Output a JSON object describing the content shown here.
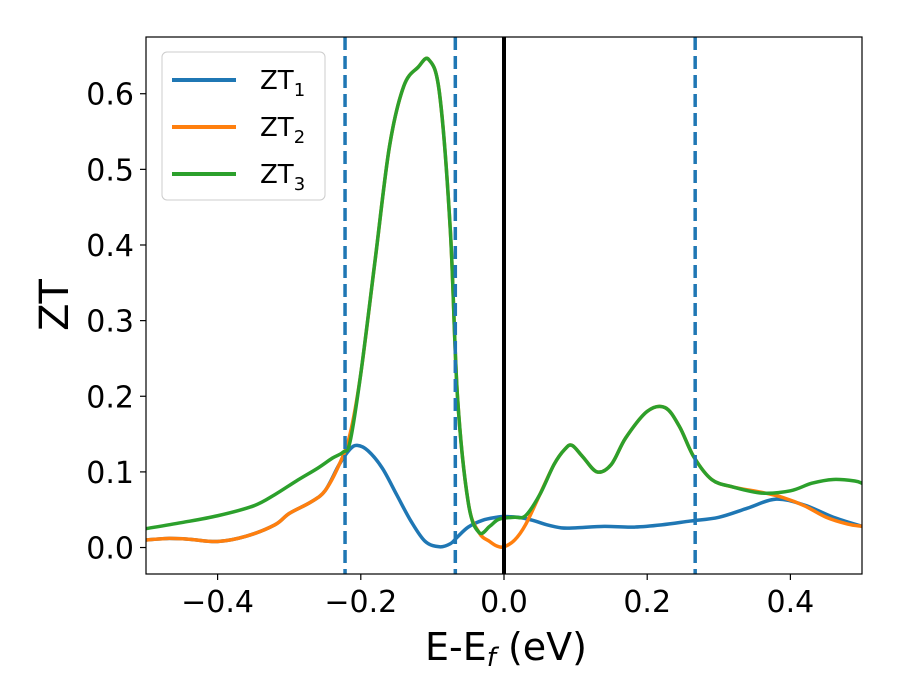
{
  "chart_data": {
    "type": "line",
    "xlabel": {
      "main": "E-E",
      "sub": "f",
      "unit": " (eV)"
    },
    "ylabel": "ZT",
    "xlim": [
      -0.5,
      0.5
    ],
    "ylim": [
      -0.035,
      0.675
    ],
    "xticks": [
      -0.4,
      -0.2,
      0.0,
      0.2,
      0.4
    ],
    "xtick_labels": [
      "−0.4",
      "−0.2",
      "0.0",
      "0.2",
      "0.4"
    ],
    "yticks": [
      0.0,
      0.1,
      0.2,
      0.3,
      0.4,
      0.5,
      0.6
    ],
    "ytick_labels": [
      "0.0",
      "0.1",
      "0.2",
      "0.3",
      "0.4",
      "0.5",
      "0.6"
    ],
    "legend_position": "top-left",
    "grid": false,
    "series": [
      {
        "name": "ZT",
        "sub": "1",
        "color": "#1f77b4",
        "x": [
          -0.5,
          -0.47,
          -0.44,
          -0.4,
          -0.36,
          -0.32,
          -0.3,
          -0.27,
          -0.25,
          -0.23,
          -0.215,
          -0.205,
          -0.19,
          -0.17,
          -0.15,
          -0.13,
          -0.11,
          -0.09,
          -0.075,
          -0.065,
          -0.05,
          -0.03,
          -0.01,
          0.0,
          0.02,
          0.04,
          0.06,
          0.08,
          0.1,
          0.14,
          0.18,
          0.22,
          0.26,
          0.3,
          0.34,
          0.38,
          0.42,
          0.46,
          0.5
        ],
        "y": [
          0.01,
          0.012,
          0.011,
          0.008,
          0.015,
          0.03,
          0.045,
          0.06,
          0.075,
          0.11,
          0.13,
          0.135,
          0.128,
          0.105,
          0.07,
          0.035,
          0.008,
          0.001,
          0.005,
          0.014,
          0.027,
          0.036,
          0.04,
          0.041,
          0.04,
          0.036,
          0.03,
          0.026,
          0.026,
          0.028,
          0.027,
          0.03,
          0.035,
          0.04,
          0.052,
          0.064,
          0.056,
          0.04,
          0.028
        ]
      },
      {
        "name": "ZT",
        "sub": "2",
        "color": "#ff7f0e",
        "x": [
          -0.5,
          -0.47,
          -0.44,
          -0.4,
          -0.36,
          -0.32,
          -0.3,
          -0.27,
          -0.25,
          -0.23,
          -0.215,
          -0.2,
          -0.18,
          -0.16,
          -0.14,
          -0.12,
          -0.105,
          -0.09,
          -0.075,
          -0.065,
          -0.05,
          -0.035,
          -0.02,
          -0.01,
          0.0,
          0.015,
          0.03,
          0.05,
          0.07,
          0.085,
          0.095,
          0.11,
          0.13,
          0.15,
          0.17,
          0.2,
          0.225,
          0.245,
          0.265,
          0.29,
          0.32,
          0.36,
          0.39,
          0.42,
          0.45,
          0.48,
          0.5
        ],
        "y": [
          0.01,
          0.012,
          0.011,
          0.008,
          0.015,
          0.03,
          0.045,
          0.06,
          0.075,
          0.11,
          0.15,
          0.23,
          0.38,
          0.53,
          0.61,
          0.635,
          0.645,
          0.6,
          0.42,
          0.2,
          0.06,
          0.02,
          0.008,
          0.002,
          0.001,
          0.01,
          0.03,
          0.07,
          0.11,
          0.13,
          0.135,
          0.12,
          0.1,
          0.11,
          0.145,
          0.18,
          0.185,
          0.16,
          0.12,
          0.09,
          0.08,
          0.073,
          0.066,
          0.055,
          0.04,
          0.031,
          0.028
        ]
      },
      {
        "name": "ZT",
        "sub": "3",
        "color": "#2ca02c",
        "x": [
          -0.5,
          -0.45,
          -0.4,
          -0.35,
          -0.32,
          -0.29,
          -0.26,
          -0.24,
          -0.225,
          -0.215,
          -0.2,
          -0.18,
          -0.16,
          -0.14,
          -0.12,
          -0.105,
          -0.09,
          -0.075,
          -0.065,
          -0.05,
          -0.035,
          -0.02,
          -0.01,
          0.0,
          0.015,
          0.03,
          0.05,
          0.07,
          0.085,
          0.095,
          0.11,
          0.13,
          0.15,
          0.17,
          0.2,
          0.225,
          0.245,
          0.265,
          0.29,
          0.32,
          0.36,
          0.4,
          0.43,
          0.46,
          0.49,
          0.5
        ],
        "y": [
          0.025,
          0.033,
          0.042,
          0.055,
          0.07,
          0.088,
          0.105,
          0.118,
          0.126,
          0.14,
          0.23,
          0.38,
          0.53,
          0.61,
          0.635,
          0.645,
          0.6,
          0.42,
          0.2,
          0.06,
          0.02,
          0.028,
          0.036,
          0.039,
          0.04,
          0.042,
          0.07,
          0.11,
          0.13,
          0.135,
          0.12,
          0.1,
          0.11,
          0.145,
          0.18,
          0.185,
          0.16,
          0.12,
          0.09,
          0.08,
          0.072,
          0.075,
          0.085,
          0.09,
          0.088,
          0.085
        ]
      }
    ],
    "vlines": [
      {
        "x": -0.222,
        "style": "dashed",
        "color": "#1f77b4"
      },
      {
        "x": -0.068,
        "style": "dashed",
        "color": "#1f77b4"
      },
      {
        "x": 0.0,
        "style": "solid",
        "color": "#000000"
      },
      {
        "x": 0.267,
        "style": "dashed",
        "color": "#1f77b4"
      }
    ]
  }
}
